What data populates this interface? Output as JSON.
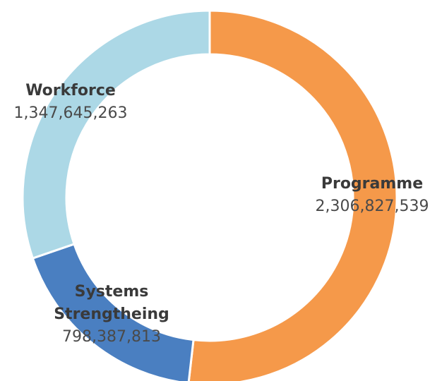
{
  "chart_data": {
    "type": "donut",
    "categories": [
      "Programme",
      "Systems Strengtheing",
      "Workforce"
    ],
    "values": [
      2306827539,
      798387813,
      1347645263
    ],
    "value_labels": [
      "2,306,827,539",
      "798,387,813",
      "1,347,645,263"
    ],
    "colors": [
      "#f5994a",
      "#4a7fc1",
      "#acd8e6"
    ]
  }
}
